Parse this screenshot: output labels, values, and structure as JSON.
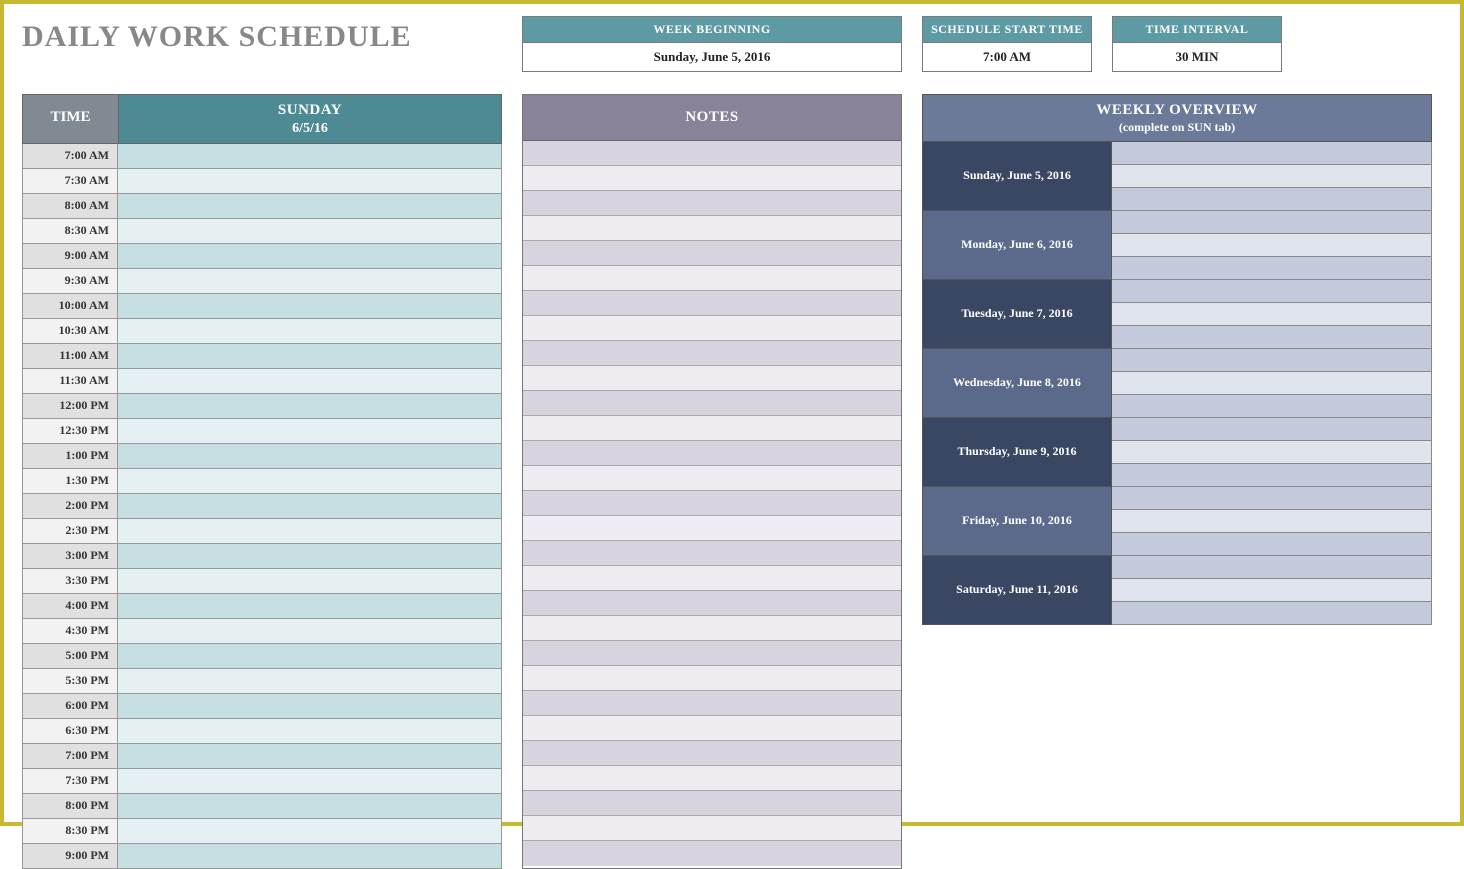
{
  "title": "DAILY WORK SCHEDULE",
  "info": {
    "week_beginning": {
      "label": "WEEK BEGINNING",
      "value": "Sunday, June 5, 2016"
    },
    "start_time": {
      "label": "SCHEDULE START TIME",
      "value": "7:00 AM"
    },
    "interval": {
      "label": "TIME INTERVAL",
      "value": "30 MIN"
    }
  },
  "schedule": {
    "time_header": "TIME",
    "day_name": "SUNDAY",
    "day_date": "6/5/16",
    "times": [
      "7:00 AM",
      "7:30 AM",
      "8:00 AM",
      "8:30 AM",
      "9:00 AM",
      "9:30 AM",
      "10:00 AM",
      "10:30 AM",
      "11:00 AM",
      "11:30 AM",
      "12:00 PM",
      "12:30 PM",
      "1:00 PM",
      "1:30 PM",
      "2:00 PM",
      "2:30 PM",
      "3:00 PM",
      "3:30 PM",
      "4:00 PM",
      "4:30 PM",
      "5:00 PM",
      "5:30 PM",
      "6:00 PM",
      "6:30 PM",
      "7:00 PM",
      "7:30 PM",
      "8:00 PM",
      "8:30 PM",
      "9:00 PM"
    ],
    "band_colors": {
      "time_a": "#e0e0e0",
      "task_a": "#c5dfe2",
      "time_b": "#f2f2f2",
      "task_b": "#e4f0f2"
    },
    "header_colors": {
      "time": "#808a93",
      "day": "#4d8a93"
    }
  },
  "notes": {
    "header": "NOTES",
    "row_count": 29,
    "header_color": "#8a8299",
    "row_color_a": "#d8d3de",
    "row_color_b": "#eeecf1"
  },
  "weekly": {
    "header": "WEEKLY OVERVIEW",
    "subheader": "(complete on SUN tab)",
    "header_color": "#6b7a99",
    "label_color_a": "#3a4763",
    "label_color_b": "#5b6a8a",
    "cell_color_a": "#c3cadb",
    "cell_color_b": "#e0e4ed",
    "days": [
      "Sunday, June 5, 2016",
      "Monday, June 6, 2016",
      "Tuesday, June 7, 2016",
      "Wednesday, June 8, 2016",
      "Thursday, June 9, 2016",
      "Friday, June 10, 2016",
      "Saturday, June 11, 2016"
    ],
    "cells_per_day": 3
  },
  "frame_color": "#c9b932"
}
